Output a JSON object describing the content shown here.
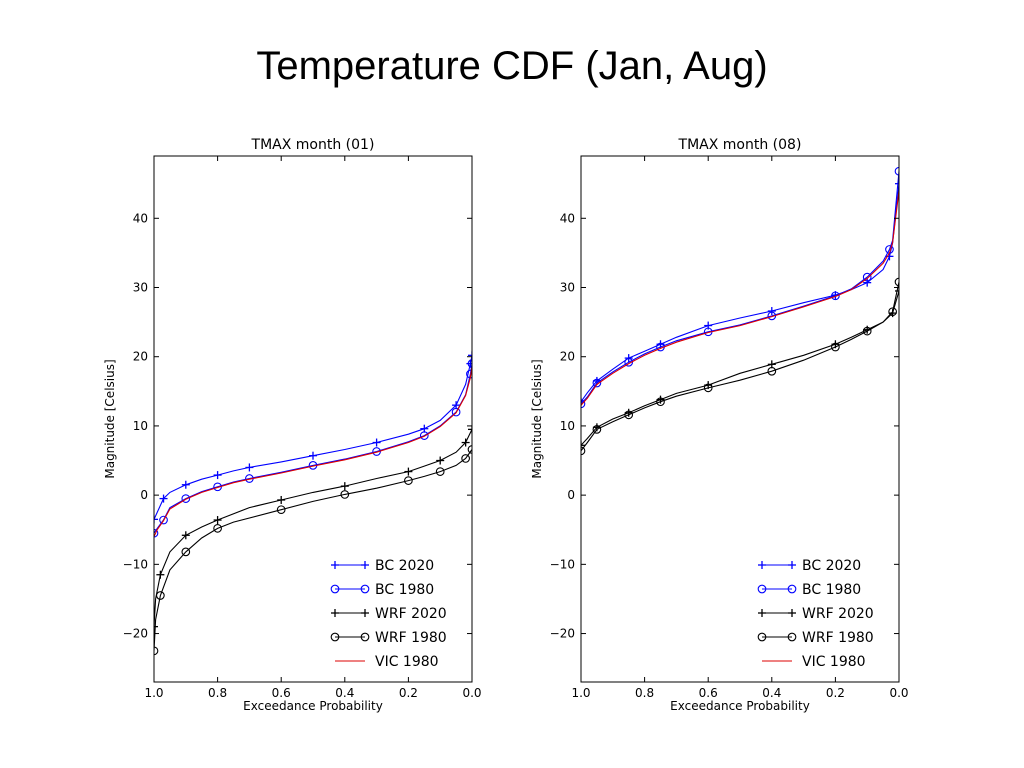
{
  "slide": {
    "title": "Temperature CDF (Jan, Aug)"
  },
  "series_style": [
    {
      "name": "BC 2020",
      "color": "#0000ff",
      "marker": "plus"
    },
    {
      "name": "BC 1980",
      "color": "#0000ff",
      "marker": "circle"
    },
    {
      "name": "WRF 2020",
      "color": "#000000",
      "marker": "plus"
    },
    {
      "name": "WRF 1980",
      "color": "#000000",
      "marker": "circle"
    },
    {
      "name": "VIC 1980",
      "color": "#dd0000",
      "marker": "none"
    }
  ],
  "chart_data": [
    {
      "type": "line",
      "title": "TMAX month (01)",
      "xlabel": "Exceedance Probability",
      "ylabel": "Magnitude [Celsius]",
      "xlim": [
        1.0,
        0.0
      ],
      "ylim": [
        -27,
        49
      ],
      "xticks": [
        "1.0",
        "0.8",
        "0.6",
        "0.4",
        "0.2",
        "0.0"
      ],
      "yticks": [
        "−20",
        "−10",
        "0",
        "10",
        "20",
        "30",
        "40"
      ],
      "legend": "lower-right",
      "grid": false,
      "series": [
        {
          "name": "BC 2020",
          "points": [
            [
              1.0,
              -3.5
            ],
            [
              0.99,
              -2.5
            ],
            [
              0.97,
              -0.5
            ],
            [
              0.95,
              0.4
            ],
            [
              0.9,
              1.5
            ],
            [
              0.85,
              2.3
            ],
            [
              0.8,
              2.9
            ],
            [
              0.75,
              3.5
            ],
            [
              0.7,
              4.0
            ],
            [
              0.6,
              4.8
            ],
            [
              0.5,
              5.7
            ],
            [
              0.4,
              6.6
            ],
            [
              0.3,
              7.6
            ],
            [
              0.2,
              8.8
            ],
            [
              0.15,
              9.6
            ],
            [
              0.1,
              10.8
            ],
            [
              0.05,
              13.0
            ],
            [
              0.02,
              16.0
            ],
            [
              0.005,
              19.0
            ],
            [
              0.0,
              20.2
            ]
          ]
        },
        {
          "name": "BC 1980",
          "points": [
            [
              1.0,
              -5.5
            ],
            [
              0.99,
              -4.8
            ],
            [
              0.97,
              -3.6
            ],
            [
              0.95,
              -1.8
            ],
            [
              0.9,
              -0.5
            ],
            [
              0.85,
              0.5
            ],
            [
              0.8,
              1.2
            ],
            [
              0.75,
              1.9
            ],
            [
              0.7,
              2.4
            ],
            [
              0.6,
              3.3
            ],
            [
              0.5,
              4.3
            ],
            [
              0.4,
              5.2
            ],
            [
              0.3,
              6.3
            ],
            [
              0.2,
              7.7
            ],
            [
              0.15,
              8.6
            ],
            [
              0.1,
              10.0
            ],
            [
              0.05,
              12.0
            ],
            [
              0.02,
              14.5
            ],
            [
              0.005,
              17.5
            ],
            [
              0.0,
              19.0
            ]
          ]
        },
        {
          "name": "WRF 2020",
          "points": [
            [
              1.0,
              -19.0
            ],
            [
              0.995,
              -15.0
            ],
            [
              0.98,
              -11.5
            ],
            [
              0.95,
              -8.2
            ],
            [
              0.9,
              -5.8
            ],
            [
              0.85,
              -4.6
            ],
            [
              0.8,
              -3.6
            ],
            [
              0.7,
              -1.8
            ],
            [
              0.6,
              -0.7
            ],
            [
              0.5,
              0.4
            ],
            [
              0.4,
              1.3
            ],
            [
              0.3,
              2.4
            ],
            [
              0.2,
              3.4
            ],
            [
              0.15,
              4.2
            ],
            [
              0.1,
              5.0
            ],
            [
              0.05,
              6.2
            ],
            [
              0.02,
              7.6
            ],
            [
              0.0,
              9.5
            ]
          ]
        },
        {
          "name": "WRF 1980",
          "points": [
            [
              1.0,
              -22.5
            ],
            [
              0.995,
              -18.0
            ],
            [
              0.98,
              -14.5
            ],
            [
              0.95,
              -10.8
            ],
            [
              0.9,
              -8.2
            ],
            [
              0.85,
              -6.2
            ],
            [
              0.8,
              -4.8
            ],
            [
              0.75,
              -3.9
            ],
            [
              0.6,
              -2.1
            ],
            [
              0.5,
              -0.9
            ],
            [
              0.4,
              0.1
            ],
            [
              0.3,
              1.0
            ],
            [
              0.2,
              2.1
            ],
            [
              0.15,
              2.7
            ],
            [
              0.1,
              3.4
            ],
            [
              0.05,
              4.3
            ],
            [
              0.02,
              5.3
            ],
            [
              0.0,
              6.6
            ]
          ]
        },
        {
          "name": "VIC 1980",
          "points": [
            [
              1.0,
              -6.0
            ],
            [
              0.99,
              -5.0
            ],
            [
              0.97,
              -3.7
            ],
            [
              0.95,
              -2.0
            ],
            [
              0.9,
              -0.6
            ],
            [
              0.85,
              0.4
            ],
            [
              0.8,
              1.1
            ],
            [
              0.75,
              1.8
            ],
            [
              0.7,
              2.3
            ],
            [
              0.6,
              3.2
            ],
            [
              0.5,
              4.2
            ],
            [
              0.4,
              5.1
            ],
            [
              0.3,
              6.2
            ],
            [
              0.2,
              7.6
            ],
            [
              0.15,
              8.5
            ],
            [
              0.1,
              9.9
            ],
            [
              0.05,
              11.9
            ],
            [
              0.02,
              14.4
            ],
            [
              0.005,
              17.0
            ],
            [
              0.0,
              18.5
            ]
          ]
        }
      ]
    },
    {
      "type": "line",
      "title": "TMAX month (08)",
      "xlabel": "Exceedance Probability",
      "ylabel": "Magnitude [Celsius]",
      "xlim": [
        1.0,
        0.0
      ],
      "ylim": [
        -27,
        49
      ],
      "xticks": [
        "1.0",
        "0.8",
        "0.6",
        "0.4",
        "0.2",
        "0.0"
      ],
      "yticks": [
        "−20",
        "−10",
        "0",
        "10",
        "20",
        "30",
        "40"
      ],
      "legend": "lower-right",
      "grid": false,
      "series": [
        {
          "name": "BC 2020",
          "points": [
            [
              1.0,
              13.5
            ],
            [
              0.98,
              14.8
            ],
            [
              0.95,
              16.5
            ],
            [
              0.9,
              18.2
            ],
            [
              0.85,
              19.8
            ],
            [
              0.8,
              20.8
            ],
            [
              0.75,
              21.8
            ],
            [
              0.7,
              22.8
            ],
            [
              0.6,
              24.5
            ],
            [
              0.5,
              25.6
            ],
            [
              0.4,
              26.6
            ],
            [
              0.3,
              27.8
            ],
            [
              0.2,
              28.9
            ],
            [
              0.15,
              29.7
            ],
            [
              0.1,
              30.7
            ],
            [
              0.05,
              32.6
            ],
            [
              0.03,
              34.5
            ],
            [
              0.02,
              36.4
            ],
            [
              0.0,
              45.0
            ]
          ]
        },
        {
          "name": "BC 1980",
          "points": [
            [
              1.0,
              13.2
            ],
            [
              0.98,
              14.2
            ],
            [
              0.95,
              16.2
            ],
            [
              0.9,
              17.8
            ],
            [
              0.85,
              19.2
            ],
            [
              0.8,
              20.4
            ],
            [
              0.75,
              21.4
            ],
            [
              0.7,
              22.3
            ],
            [
              0.6,
              23.6
            ],
            [
              0.5,
              24.6
            ],
            [
              0.4,
              25.9
            ],
            [
              0.3,
              27.3
            ],
            [
              0.2,
              28.8
            ],
            [
              0.15,
              29.8
            ],
            [
              0.1,
              31.5
            ],
            [
              0.05,
              33.8
            ],
            [
              0.03,
              35.5
            ],
            [
              0.02,
              36.8
            ],
            [
              0.0,
              46.8
            ]
          ]
        },
        {
          "name": "WRF 2020",
          "points": [
            [
              1.0,
              7.2
            ],
            [
              0.98,
              8.2
            ],
            [
              0.95,
              9.8
            ],
            [
              0.9,
              11.0
            ],
            [
              0.85,
              11.9
            ],
            [
              0.8,
              12.9
            ],
            [
              0.75,
              13.8
            ],
            [
              0.7,
              14.7
            ],
            [
              0.6,
              15.9
            ],
            [
              0.5,
              17.6
            ],
            [
              0.4,
              18.9
            ],
            [
              0.3,
              20.2
            ],
            [
              0.2,
              21.8
            ],
            [
              0.15,
              22.8
            ],
            [
              0.1,
              23.9
            ],
            [
              0.05,
              25.0
            ],
            [
              0.02,
              26.3
            ],
            [
              0.0,
              29.5
            ]
          ]
        },
        {
          "name": "WRF 1980",
          "points": [
            [
              1.0,
              6.4
            ],
            [
              0.98,
              7.6
            ],
            [
              0.95,
              9.5
            ],
            [
              0.9,
              10.6
            ],
            [
              0.85,
              11.6
            ],
            [
              0.8,
              12.6
            ],
            [
              0.75,
              13.5
            ],
            [
              0.7,
              14.3
            ],
            [
              0.6,
              15.5
            ],
            [
              0.5,
              16.6
            ],
            [
              0.4,
              17.9
            ],
            [
              0.3,
              19.5
            ],
            [
              0.2,
              21.4
            ],
            [
              0.15,
              22.5
            ],
            [
              0.1,
              23.7
            ],
            [
              0.05,
              25.0
            ],
            [
              0.02,
              26.5
            ],
            [
              0.0,
              30.8
            ]
          ]
        },
        {
          "name": "VIC 1980",
          "points": [
            [
              1.0,
              13.0
            ],
            [
              0.98,
              14.0
            ],
            [
              0.95,
              16.0
            ],
            [
              0.9,
              17.6
            ],
            [
              0.85,
              19.0
            ],
            [
              0.8,
              20.2
            ],
            [
              0.75,
              21.2
            ],
            [
              0.7,
              22.1
            ],
            [
              0.6,
              23.5
            ],
            [
              0.5,
              24.5
            ],
            [
              0.4,
              25.8
            ],
            [
              0.3,
              27.2
            ],
            [
              0.2,
              28.7
            ],
            [
              0.15,
              29.7
            ],
            [
              0.1,
              31.3
            ],
            [
              0.05,
              33.5
            ],
            [
              0.03,
              35.0
            ],
            [
              0.02,
              36.5
            ],
            [
              0.0,
              44.0
            ]
          ]
        }
      ]
    }
  ]
}
